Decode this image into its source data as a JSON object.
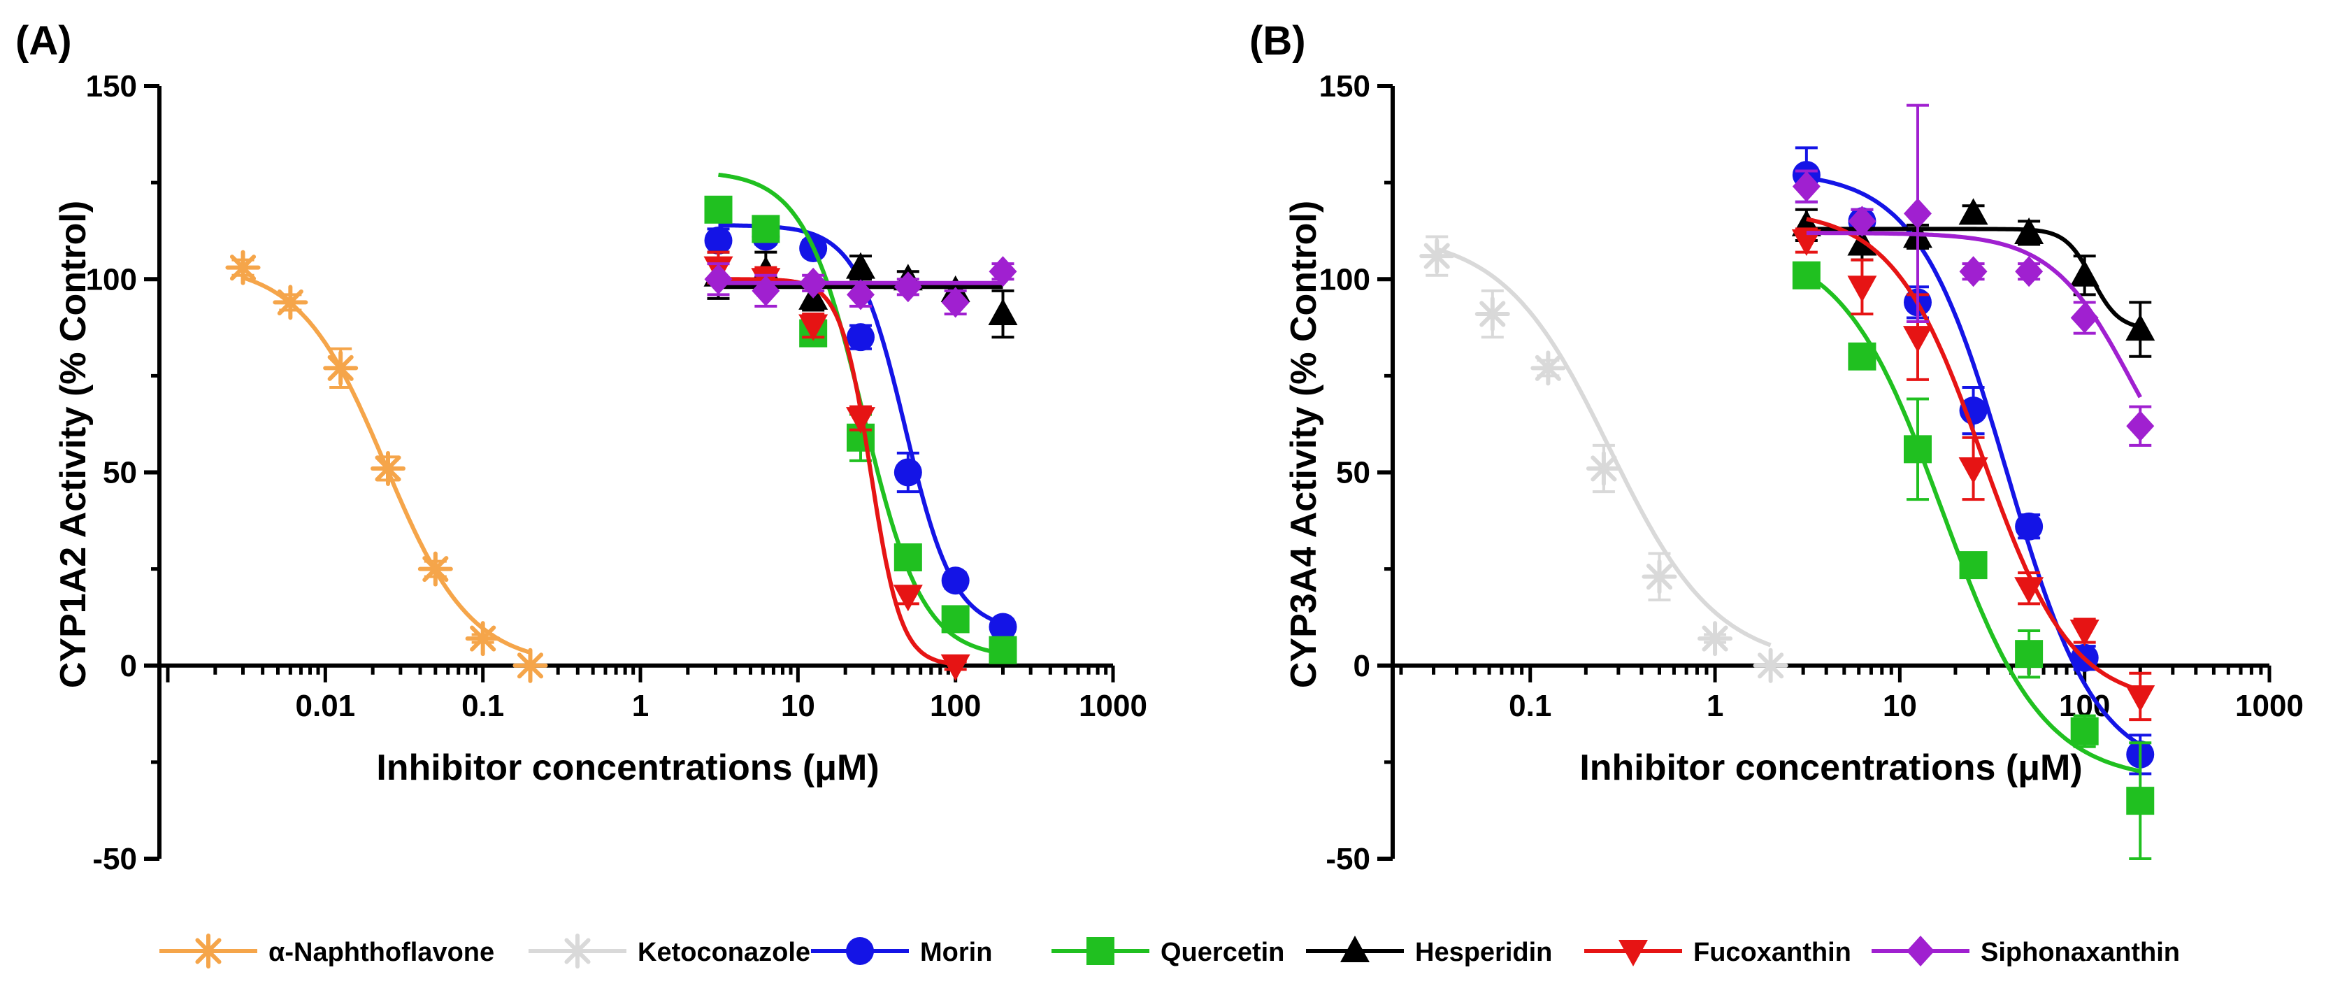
{
  "chart_data": [
    {
      "panel": "(A)",
      "type": "scatter",
      "xscale": "log",
      "xlabel": "Inhibitor concentrations (μM)",
      "ylabel": "CYP1A2 Activity (% Control)",
      "xlim": [
        0.001,
        1000
      ],
      "ylim": [
        -50,
        150
      ],
      "xticks": [
        "0.01",
        "0.1",
        "1",
        "10",
        "100",
        "1000"
      ],
      "yticks": [
        "150",
        "100",
        "50",
        "0",
        "-50"
      ],
      "series": [
        {
          "name": "α-Naphthoflavone",
          "x": [
            0.003,
            0.006,
            0.0125,
            0.025,
            0.05,
            0.1,
            0.2
          ],
          "y": [
            103,
            94,
            77,
            51,
            25,
            7,
            0
          ],
          "err": [
            2,
            2,
            5,
            3,
            2,
            1,
            0
          ],
          "fit": {
            "top": 104,
            "bottom": 0,
            "ic50": 0.024,
            "hill": 1.6
          }
        },
        {
          "name": "Morin",
          "x": [
            3.125,
            6.25,
            12.5,
            25,
            50,
            100,
            200
          ],
          "y": [
            110,
            111,
            108,
            85,
            50,
            22,
            10
          ],
          "err": [
            3,
            2,
            2,
            3,
            5,
            2,
            2
          ],
          "fit": {
            "top": 114,
            "bottom": 9,
            "ic50": 48,
            "hill": 2.8
          }
        },
        {
          "name": "Quercetin",
          "x": [
            3.125,
            6.25,
            12.5,
            25,
            50,
            100,
            200
          ],
          "y": [
            118,
            113,
            86,
            59,
            28,
            12,
            4
          ],
          "err": [
            3,
            2,
            3,
            6,
            3,
            2,
            1
          ],
          "fit": {
            "top": 128,
            "bottom": 2,
            "ic50": 26,
            "hill": 2.3
          }
        },
        {
          "name": "Hesperidin",
          "x": [
            3.125,
            6.25,
            12.5,
            25,
            50,
            100,
            200
          ],
          "y": [
            101,
            102,
            95,
            103,
            100,
            97,
            91
          ],
          "err": [
            6,
            5,
            3,
            3,
            2,
            2,
            6
          ],
          "fit": {
            "type": "flat",
            "value": 98
          }
        },
        {
          "name": "Fucoxanthin",
          "x": [
            3.125,
            6.25,
            12.5,
            25,
            50,
            100
          ],
          "y": [
            103,
            100,
            88,
            64,
            18,
            0
          ],
          "err": [
            4,
            3,
            3,
            3,
            2,
            1
          ],
          "fit": {
            "top": 100,
            "bottom": 0,
            "ic50": 29,
            "hill": 4.5
          }
        },
        {
          "name": "Siphonaxanthin",
          "x": [
            3.125,
            6.25,
            12.5,
            25,
            50,
            100,
            200
          ],
          "y": [
            100,
            97,
            99,
            96,
            98,
            94,
            102
          ],
          "err": [
            4,
            4,
            2,
            3,
            2,
            3,
            2
          ],
          "fit": {
            "type": "flat",
            "value": 99
          }
        }
      ]
    },
    {
      "panel": "(B)",
      "type": "scatter",
      "xscale": "log",
      "xlabel": "Inhibitor concentrations (μM)",
      "ylabel": "CYP3A4 Activity (% Control)",
      "xlim": [
        0.02,
        1000
      ],
      "ylim": [
        -50,
        150
      ],
      "xticks": [
        "0.1",
        "1",
        "10",
        "100",
        "1000"
      ],
      "yticks": [
        "150",
        "100",
        "50",
        "0",
        "-50"
      ],
      "series": [
        {
          "name": "Ketoconazole",
          "x": [
            0.03125,
            0.0625,
            0.125,
            0.25,
            0.5,
            1,
            2
          ],
          "y": [
            106,
            91,
            77,
            51,
            23,
            7,
            0
          ],
          "err": [
            5,
            6,
            2,
            6,
            6,
            1,
            0
          ],
          "fit": {
            "top": 112,
            "bottom": 0,
            "ic50": 0.27,
            "hill": 1.5
          }
        },
        {
          "name": "Morin",
          "x": [
            3.125,
            6.25,
            12.5,
            25,
            50,
            100,
            200
          ],
          "y": [
            127,
            115,
            94,
            66,
            36,
            2,
            -23
          ],
          "err": [
            7,
            3,
            4,
            6,
            3,
            3,
            5
          ],
          "fit": {
            "top": 128,
            "bottom": -28,
            "ic50": 38,
            "hill": 1.8
          }
        },
        {
          "name": "Quercetin",
          "x": [
            3.125,
            6.25,
            12.5,
            25,
            50,
            100,
            200
          ],
          "y": [
            101,
            80,
            56,
            26,
            3,
            -17,
            -35
          ],
          "err": [
            3,
            2,
            13,
            3,
            6,
            4,
            15
          ],
          "fit": {
            "top": 110,
            "bottom": -30,
            "ic50": 17,
            "hill": 1.6
          }
        },
        {
          "name": "Hesperidin",
          "x": [
            3.125,
            6.25,
            12.5,
            25,
            50,
            100,
            200
          ],
          "y": [
            114,
            109,
            111,
            117,
            112,
            101,
            87
          ],
          "err": [
            4,
            4,
            3,
            2,
            3,
            5,
            7
          ],
          "fit": {
            "top": 113,
            "bottom": 87,
            "ic50": 110,
            "hill": 6
          }
        },
        {
          "name": "Fucoxanthin",
          "x": [
            3.125,
            6.25,
            12.5,
            25,
            50,
            100,
            200
          ],
          "y": [
            110,
            98,
            85,
            51,
            20,
            9,
            -8
          ],
          "err": [
            3,
            7,
            11,
            8,
            4,
            3,
            6
          ],
          "fit": {
            "top": 118,
            "bottom": -10,
            "ic50": 28,
            "hill": 1.8
          }
        },
        {
          "name": "Siphonaxanthin",
          "x": [
            3.125,
            6.25,
            12.5,
            25,
            50,
            100,
            200
          ],
          "y": [
            124,
            115,
            117,
            102,
            102,
            90,
            62
          ],
          "err": [
            4,
            3,
            28,
            2,
            2,
            4,
            5
          ],
          "fit": {
            "top": 112,
            "bottom": 35,
            "ic50": 180,
            "hill": 2
          }
        }
      ]
    }
  ],
  "legend": [
    {
      "name": "α-Naphthoflavone",
      "color": "#f5a54a",
      "marker": "asterisk"
    },
    {
      "name": "Ketoconazole",
      "color": "#d9d9d9",
      "marker": "asterisk"
    },
    {
      "name": "Morin",
      "color": "#1414e6",
      "marker": "circle"
    },
    {
      "name": "Quercetin",
      "color": "#20c020",
      "marker": "square"
    },
    {
      "name": "Hesperidin",
      "color": "#000000",
      "marker": "triangle-up"
    },
    {
      "name": "Fucoxanthin",
      "color": "#e61414",
      "marker": "triangle-down"
    },
    {
      "name": "Siphonaxanthin",
      "color": "#a020d0",
      "marker": "diamond"
    }
  ]
}
